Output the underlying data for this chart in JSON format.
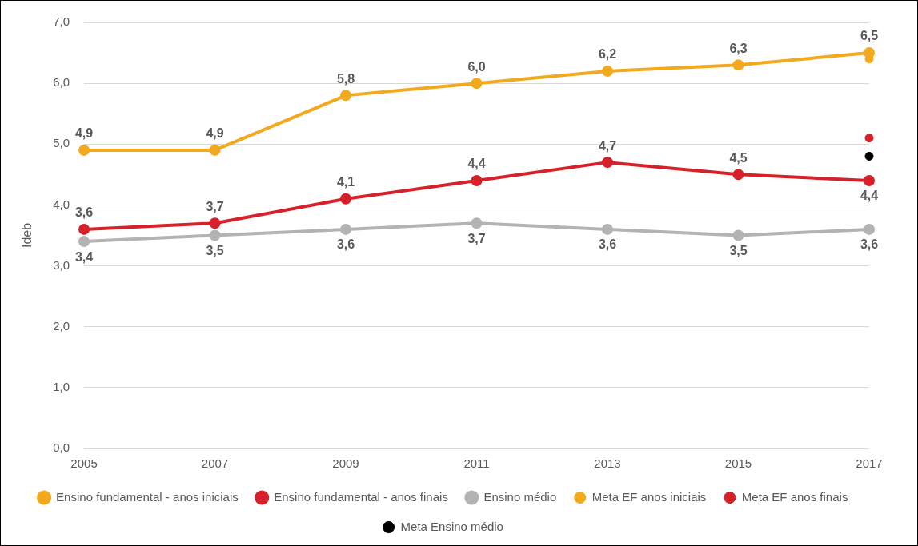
{
  "chart_data": {
    "type": "line",
    "ylabel": "Ideb",
    "categories": [
      "2005",
      "2007",
      "2009",
      "2011",
      "2013",
      "2015",
      "2017"
    ],
    "ylim": [
      0,
      7
    ],
    "yticks": [
      {
        "value": 0,
        "label": "0,0"
      },
      {
        "value": 1,
        "label": "1,0"
      },
      {
        "value": 2,
        "label": "2,0"
      },
      {
        "value": 3,
        "label": "3,0"
      },
      {
        "value": 4,
        "label": "4,0"
      },
      {
        "value": 5,
        "label": "5,0"
      },
      {
        "value": 6,
        "label": "6,0"
      },
      {
        "value": 7,
        "label": "7,0"
      }
    ],
    "grid": "y",
    "legend": "bottom",
    "marker": "circle",
    "line_style": "solid",
    "series": [
      {
        "name": "Ensino fundamental - anos iniciais",
        "color": "#f2a91e",
        "values": [
          4.9,
          4.9,
          5.8,
          6.0,
          6.2,
          6.3,
          6.5
        ],
        "value_labels": [
          "4,9",
          "4,9",
          "5,8",
          "6,0",
          "6,2",
          "6,3",
          "6,5"
        ]
      },
      {
        "name": "Ensino fundamental - anos finais",
        "color": "#d7212a",
        "values": [
          3.6,
          3.7,
          4.1,
          4.4,
          4.7,
          4.5,
          4.4
        ],
        "value_labels": [
          "3,6",
          "3,7",
          "4,1",
          "4,4",
          "4,7",
          "4,5",
          "4,4"
        ]
      },
      {
        "name": "Ensino médio",
        "color": "#b3b3b3",
        "values": [
          3.4,
          3.5,
          3.6,
          3.7,
          3.6,
          3.5,
          3.6
        ],
        "value_labels": [
          "3,4",
          "3,5",
          "3,6",
          "3,7",
          "3,6",
          "3,5",
          "3,6"
        ]
      },
      {
        "name": "Meta EF anos iniciais",
        "type": "scatter",
        "color": "#f2a91e",
        "values": [
          null,
          null,
          null,
          null,
          null,
          null,
          6.4
        ]
      },
      {
        "name": "Meta EF anos finais",
        "type": "scatter",
        "color": "#d7212a",
        "values": [
          null,
          null,
          null,
          null,
          null,
          null,
          5.1
        ]
      },
      {
        "name": "Meta Ensino médio",
        "type": "scatter",
        "color": "#000000",
        "values": [
          null,
          null,
          null,
          null,
          null,
          null,
          4.8
        ]
      }
    ]
  }
}
